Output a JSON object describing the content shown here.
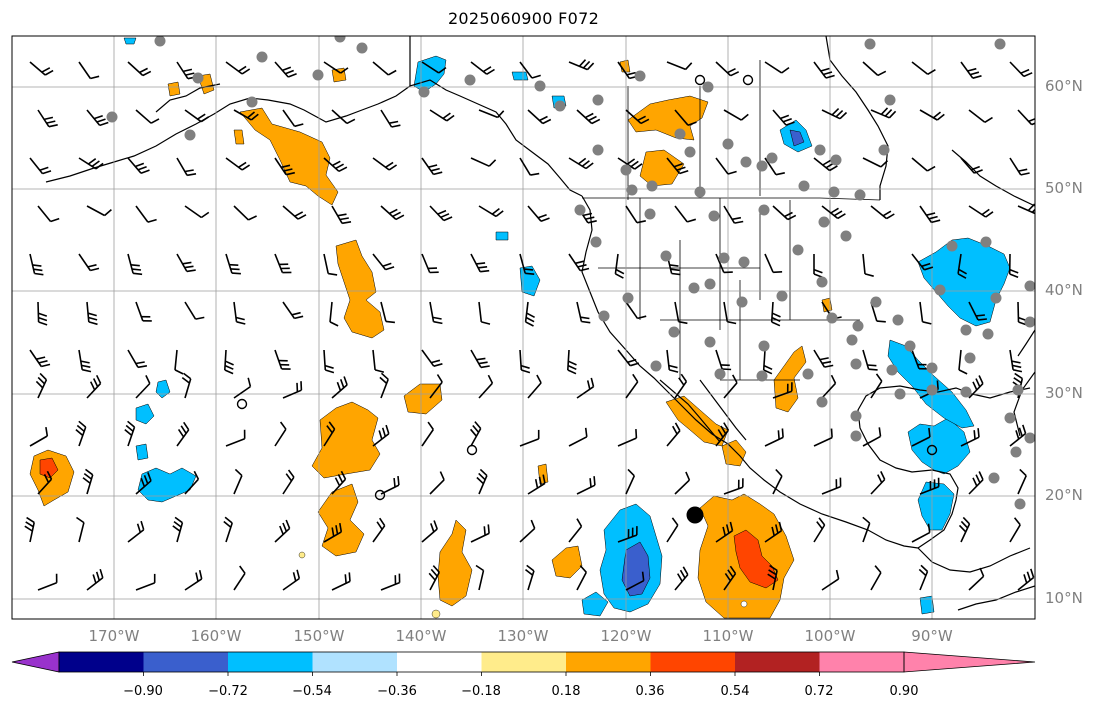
{
  "title": "2025060900 F072",
  "lat_labels": [
    "60°N",
    "50°N",
    "40°N",
    "30°N",
    "20°N",
    "10°N"
  ],
  "lon_labels": [
    "170°W",
    "160°W",
    "150°W",
    "140°W",
    "130°W",
    "120°W",
    "110°W",
    "100°W",
    "90°W"
  ],
  "colorbar": {
    "tick_labels": [
      "−0.90",
      "−0.72",
      "−0.54",
      "−0.36",
      "−0.18",
      "0.18",
      "0.36",
      "0.54",
      "0.72",
      "0.90"
    ],
    "colors": [
      "#9932cc",
      "#00008b",
      "#3a5fcd",
      "#00bfff",
      "#b0e2ff",
      "#ffffff",
      "#ffec8b",
      "#ffa500",
      "#ff4500",
      "#b22222",
      "#ff82ab"
    ]
  },
  "map": {
    "lon_range": [
      -180,
      -80
    ],
    "lat_range": [
      8,
      65
    ],
    "gridlines": true,
    "wind_barbs": true,
    "station_markers": "grey-dots",
    "contour_fill": "colormap-above"
  }
}
